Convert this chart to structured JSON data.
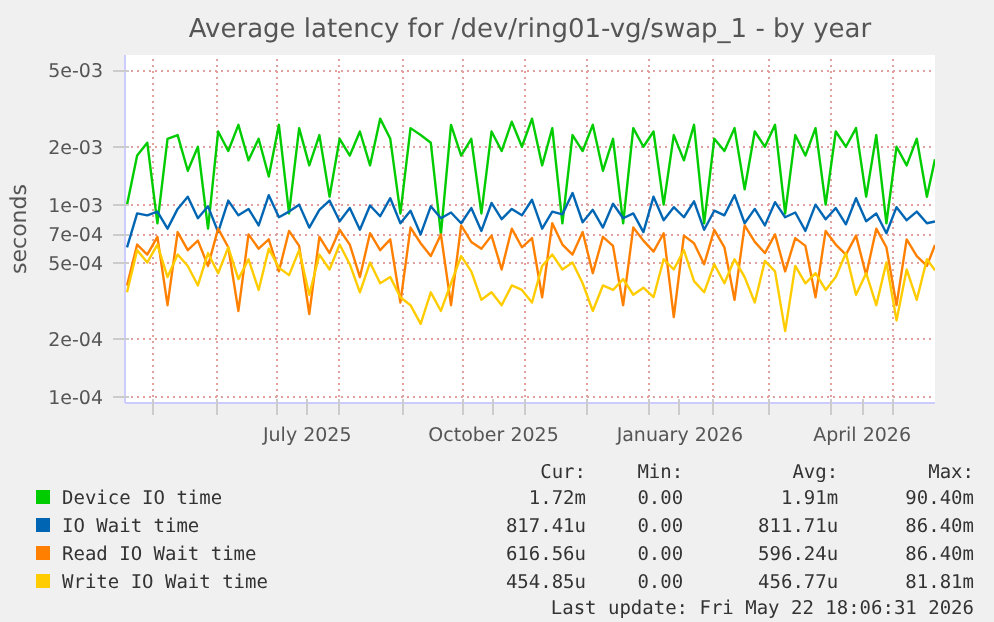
{
  "chart_data": {
    "type": "line",
    "title": "Average latency for /dev/ring01-vg/swap_1 - by year",
    "ylabel": "seconds",
    "log": true,
    "grid": true,
    "legend": "bottom",
    "ylim": [
      9.3e-05,
      0.006
    ],
    "yticks": [
      {
        "value": 0.0001,
        "label": "1e-04"
      },
      {
        "value": 0.0002,
        "label": "2e-04"
      },
      {
        "value": 0.0005,
        "label": "5e-04"
      },
      {
        "value": 0.0007,
        "label": "7e-04"
      },
      {
        "value": 0.001,
        "label": "1e-03"
      },
      {
        "value": 0.002,
        "label": "2e-03"
      },
      {
        "value": 0.005,
        "label": "5e-03"
      }
    ],
    "xlim": [
      "2025-04-17",
      "2026-05-22"
    ],
    "xticks": [
      {
        "value": "2025-05-01",
        "label": null
      },
      {
        "value": "2025-06-01",
        "label": null
      },
      {
        "value": "2025-07-01",
        "label": null
      },
      {
        "value": "2025-07-16",
        "label": "July 2025"
      },
      {
        "value": "2025-08-01",
        "label": null
      },
      {
        "value": "2025-09-01",
        "label": null
      },
      {
        "value": "2025-10-01",
        "label": null
      },
      {
        "value": "2025-10-16",
        "label": "October 2025"
      },
      {
        "value": "2025-11-01",
        "label": null
      },
      {
        "value": "2025-12-01",
        "label": null
      },
      {
        "value": "2026-01-01",
        "label": null
      },
      {
        "value": "2026-01-16",
        "label": "January 2026"
      },
      {
        "value": "2026-02-01",
        "label": null
      },
      {
        "value": "2026-03-01",
        "label": null
      },
      {
        "value": "2026-04-01",
        "label": null
      },
      {
        "value": "2026-04-16",
        "label": "April 2026"
      },
      {
        "value": "2026-05-01",
        "label": null
      }
    ],
    "x": [
      "2025-04-18",
      "2025-04-23",
      "2025-04-28",
      "2025-05-03",
      "2025-05-08",
      "2025-05-13",
      "2025-05-18",
      "2025-05-23",
      "2025-05-28",
      "2025-06-02",
      "2025-06-07",
      "2025-06-12",
      "2025-06-17",
      "2025-06-22",
      "2025-06-27",
      "2025-07-02",
      "2025-07-07",
      "2025-07-12",
      "2025-07-17",
      "2025-07-22",
      "2025-07-27",
      "2025-08-01",
      "2025-08-06",
      "2025-08-11",
      "2025-08-16",
      "2025-08-21",
      "2025-08-26",
      "2025-08-31",
      "2025-09-05",
      "2025-09-10",
      "2025-09-15",
      "2025-09-20",
      "2025-09-25",
      "2025-09-30",
      "2025-10-05",
      "2025-10-10",
      "2025-10-15",
      "2025-10-20",
      "2025-10-25",
      "2025-10-30",
      "2025-11-04",
      "2025-11-09",
      "2025-11-14",
      "2025-11-19",
      "2025-11-24",
      "2025-11-29",
      "2025-12-04",
      "2025-12-09",
      "2025-12-14",
      "2025-12-19",
      "2025-12-24",
      "2025-12-29",
      "2026-01-03",
      "2026-01-08",
      "2026-01-13",
      "2026-01-18",
      "2026-01-23",
      "2026-01-28",
      "2026-02-02",
      "2026-02-07",
      "2026-02-12",
      "2026-02-17",
      "2026-02-22",
      "2026-02-27",
      "2026-03-04",
      "2026-03-09",
      "2026-03-14",
      "2026-03-19",
      "2026-03-24",
      "2026-03-29",
      "2026-04-03",
      "2026-04-08",
      "2026-04-13",
      "2026-04-18",
      "2026-04-23",
      "2026-04-28",
      "2026-05-03",
      "2026-05-08",
      "2026-05-13",
      "2026-05-18",
      "2026-05-22"
    ],
    "series": [
      {
        "name": "Device IO time",
        "color": "#00cc00",
        "values": [
          0.001,
          0.0018,
          0.0021,
          0.0008,
          0.0022,
          0.0023,
          0.0015,
          0.002,
          0.00075,
          0.0024,
          0.0019,
          0.0026,
          0.0017,
          0.0022,
          0.0014,
          0.0026,
          0.0009,
          0.0025,
          0.0016,
          0.0023,
          0.0011,
          0.0022,
          0.0018,
          0.0024,
          0.0016,
          0.0028,
          0.0022,
          0.0009,
          0.0025,
          0.0023,
          0.0021,
          0.0007,
          0.0026,
          0.0018,
          0.0022,
          0.0009,
          0.0024,
          0.0019,
          0.0027,
          0.002,
          0.0028,
          0.0016,
          0.0025,
          0.0008,
          0.0023,
          0.0019,
          0.0026,
          0.0015,
          0.0022,
          0.0008,
          0.0025,
          0.002,
          0.0024,
          0.001,
          0.0023,
          0.0017,
          0.0026,
          0.0008,
          0.0022,
          0.0019,
          0.0025,
          0.0012,
          0.0024,
          0.002,
          0.0026,
          0.0009,
          0.0023,
          0.0018,
          0.0025,
          0.001,
          0.0024,
          0.002,
          0.0025,
          0.0011,
          0.0023,
          0.0008,
          0.002,
          0.0016,
          0.0022,
          0.0011,
          0.00172
        ]
      },
      {
        "name": "IO Wait time",
        "color": "#0066b3",
        "values": [
          0.0006,
          0.0009,
          0.00088,
          0.00092,
          0.00075,
          0.00095,
          0.0011,
          0.00085,
          0.00098,
          0.00072,
          0.00105,
          0.00088,
          0.00095,
          0.00078,
          0.00112,
          0.00086,
          0.00092,
          0.001,
          0.00076,
          0.00094,
          0.00105,
          0.00082,
          0.00096,
          0.00074,
          0.00099,
          0.00087,
          0.00108,
          0.0008,
          0.00093,
          0.0007,
          0.00098,
          0.00085,
          0.00091,
          0.0008,
          0.00096,
          0.00073,
          0.00102,
          0.00084,
          0.00095,
          0.00088,
          0.00106,
          0.00075,
          0.00092,
          0.00089,
          0.00115,
          0.00081,
          0.00094,
          0.00076,
          0.00101,
          0.00085,
          0.0009,
          0.00072,
          0.0011,
          0.00083,
          0.00097,
          0.00086,
          0.00104,
          0.00074,
          0.00093,
          0.00088,
          0.00112,
          0.0008,
          0.00095,
          0.00078,
          0.00103,
          0.00086,
          0.00091,
          0.00073,
          0.001,
          0.00084,
          0.00096,
          0.00079,
          0.00108,
          0.00082,
          0.0009,
          0.00071,
          0.00097,
          0.00083,
          0.00092,
          0.0008,
          0.000817
        ]
      },
      {
        "name": "Read IO Wait time",
        "color": "#ff8000",
        "values": [
          0.00038,
          0.00062,
          0.00055,
          0.00068,
          0.0003,
          0.00072,
          0.00058,
          0.00065,
          0.00048,
          0.00075,
          0.0006,
          0.00028,
          0.0007,
          0.00059,
          0.00066,
          0.00045,
          0.00073,
          0.00061,
          0.00027,
          0.00068,
          0.00056,
          0.00074,
          0.00062,
          0.00042,
          0.00071,
          0.00058,
          0.00066,
          0.00031,
          0.00076,
          0.00063,
          0.00054,
          0.0007,
          0.0003,
          0.00078,
          0.00064,
          0.00059,
          0.00069,
          0.00046,
          0.00075,
          0.0006,
          0.00067,
          0.00033,
          0.0008,
          0.00062,
          0.00055,
          0.00072,
          0.00044,
          0.00068,
          0.00061,
          0.0003,
          0.00076,
          0.00065,
          0.00057,
          0.00071,
          0.00026,
          0.00069,
          0.00063,
          0.00049,
          0.00074,
          0.0006,
          0.00032,
          0.00078,
          0.00064,
          0.00056,
          0.0007,
          0.00045,
          0.00067,
          0.00061,
          0.00033,
          0.00073,
          0.00062,
          0.00055,
          0.00069,
          0.00043,
          0.00075,
          0.0006,
          0.0003,
          0.00066,
          0.00054,
          0.00048,
          0.000617
        ]
      },
      {
        "name": "Write IO Wait time",
        "color": "#ffcc00",
        "values": [
          0.00035,
          0.00058,
          0.0005,
          0.00062,
          0.00042,
          0.00055,
          0.00048,
          0.00038,
          0.00056,
          0.00044,
          0.0006,
          0.00041,
          0.00052,
          0.00036,
          0.00059,
          0.00047,
          0.00043,
          0.00058,
          0.00034,
          0.00055,
          0.00046,
          0.00062,
          0.00049,
          0.00035,
          0.0005,
          0.00039,
          0.00042,
          0.00033,
          0.0003,
          0.00024,
          0.00035,
          0.00028,
          0.00039,
          0.00054,
          0.00045,
          0.00032,
          0.00035,
          0.0003,
          0.00038,
          0.00036,
          0.00031,
          0.00048,
          0.00055,
          0.00046,
          0.0005,
          0.00039,
          0.00028,
          0.00038,
          0.00036,
          0.00041,
          0.00034,
          0.00037,
          0.00033,
          0.00052,
          0.00046,
          0.00058,
          0.0004,
          0.00035,
          0.00049,
          0.00039,
          0.00052,
          0.00042,
          0.00031,
          0.00051,
          0.00045,
          0.00022,
          0.00048,
          0.00039,
          0.00044,
          0.00036,
          0.00042,
          0.00056,
          0.00034,
          0.00044,
          0.0003,
          0.0005,
          0.00025,
          0.00046,
          0.00032,
          0.00052,
          0.000455
        ]
      }
    ],
    "annotations": [
      "Cur:",
      "Min:",
      "Avg:",
      "Max:",
      "1.72m",
      "0.00",
      "1.91m",
      "90.40m",
      "817.41u",
      "0.00",
      "811.71u",
      "86.40m",
      "616.56u",
      "0.00",
      "596.24u",
      "86.40m",
      "454.85u",
      "0.00",
      "456.77u",
      "81.81m",
      "Last update: Fri May 22 18:06:31 2026"
    ]
  }
}
